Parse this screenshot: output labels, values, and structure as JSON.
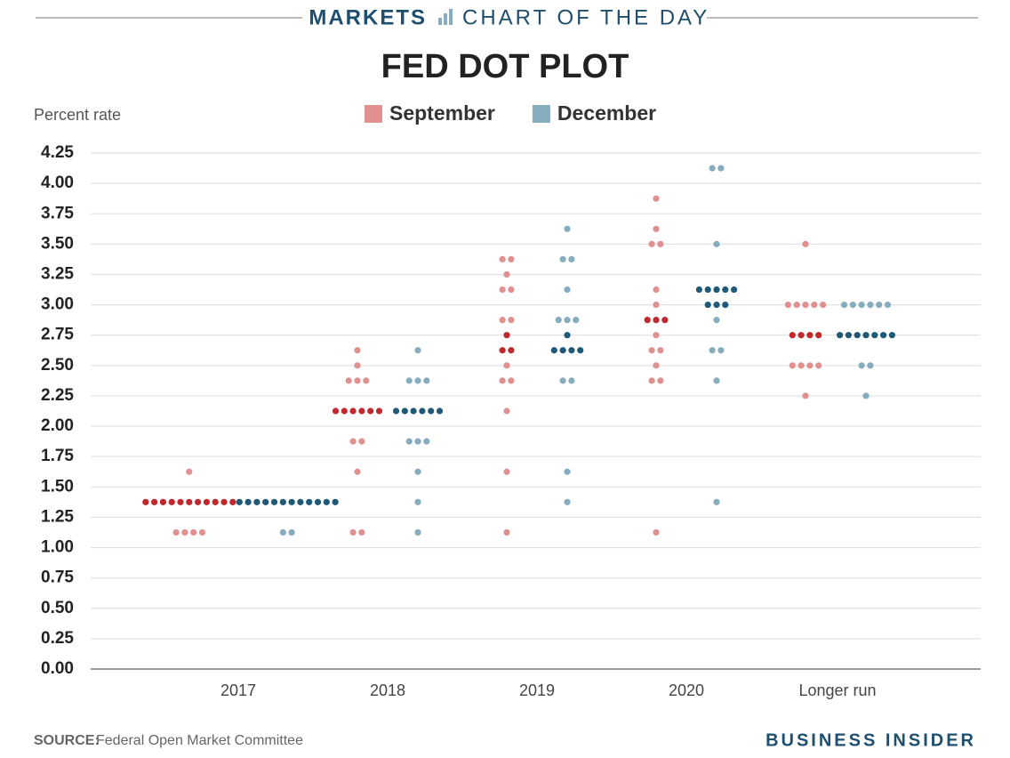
{
  "header": {
    "brand": "MARKETS",
    "section": "CHART OF THE DAY"
  },
  "chart_data": {
    "type": "dot",
    "title": "FED DOT PLOT",
    "y_label": "Percent rate",
    "categories": [
      "2017",
      "2018",
      "2019",
      "2020",
      "Longer run"
    ],
    "ylim": [
      0,
      4.25
    ],
    "yticks": [
      {
        "value": 0,
        "label": "0.00"
      },
      {
        "value": 0.25,
        "label": "0.25"
      },
      {
        "value": 0.5,
        "label": "0.50"
      },
      {
        "value": 0.75,
        "label": "0.75"
      },
      {
        "value": 1,
        "label": "1.00"
      },
      {
        "value": 1.25,
        "label": "1.25"
      },
      {
        "value": 1.5,
        "label": "1.50"
      },
      {
        "value": 1.75,
        "label": "1.75"
      },
      {
        "value": 2,
        "label": "2.00"
      },
      {
        "value": 2.25,
        "label": "2.25"
      },
      {
        "value": 2.5,
        "label": "2.50"
      },
      {
        "value": 2.75,
        "label": "2.75"
      },
      {
        "value": 3,
        "label": "3.00"
      },
      {
        "value": 3.25,
        "label": "3.25"
      },
      {
        "value": 3.5,
        "label": "3.50"
      },
      {
        "value": 3.75,
        "label": "3.75"
      },
      {
        "value": 4,
        "label": "4.00"
      },
      {
        "value": 4.25,
        "label": "4.25"
      }
    ],
    "grid": true,
    "series": [
      {
        "name": "September",
        "color": "#e0908f",
        "median_color": "#c0282d",
        "values": [
          [
            1.125,
            1.125,
            1.125,
            1.125,
            1.375,
            1.375,
            1.375,
            1.375,
            1.375,
            1.375,
            1.375,
            1.375,
            1.375,
            1.375,
            1.375,
            1.625
          ],
          [
            1.125,
            1.125,
            1.625,
            1.875,
            1.875,
            2.125,
            2.125,
            2.125,
            2.125,
            2.125,
            2.125,
            2.375,
            2.375,
            2.375,
            2.5,
            2.625
          ],
          [
            1.125,
            1.625,
            2.125,
            2.375,
            2.375,
            2.5,
            2.625,
            2.625,
            2.75,
            2.875,
            2.875,
            3.125,
            3.125,
            3.25,
            3.375,
            3.375
          ],
          [
            1.125,
            2.375,
            2.375,
            2.5,
            2.625,
            2.625,
            2.75,
            2.875,
            2.875,
            2.875,
            3.0,
            3.125,
            3.5,
            3.5,
            3.625,
            3.875
          ],
          [
            2.25,
            2.5,
            2.5,
            2.5,
            2.5,
            2.75,
            2.75,
            2.75,
            2.75,
            3.0,
            3.0,
            3.0,
            3.0,
            3.0,
            3.5
          ]
        ]
      },
      {
        "name": "December",
        "color": "#86adbd",
        "median_color": "#1e5a78",
        "values": [
          [
            1.125,
            1.125,
            1.375,
            1.375,
            1.375,
            1.375,
            1.375,
            1.375,
            1.375,
            1.375,
            1.375,
            1.375,
            1.375,
            1.375
          ],
          [
            1.125,
            1.375,
            1.625,
            1.875,
            1.875,
            1.875,
            2.125,
            2.125,
            2.125,
            2.125,
            2.125,
            2.125,
            2.375,
            2.375,
            2.375,
            2.625
          ],
          [
            1.375,
            1.625,
            2.375,
            2.375,
            2.625,
            2.625,
            2.625,
            2.625,
            2.75,
            2.875,
            2.875,
            2.875,
            3.125,
            3.375,
            3.375,
            3.625
          ],
          [
            1.375,
            2.375,
            2.625,
            2.625,
            2.875,
            3.0,
            3.0,
            3.0,
            3.125,
            3.125,
            3.125,
            3.125,
            3.125,
            3.5,
            4.125,
            4.125
          ],
          [
            2.25,
            2.5,
            2.5,
            2.75,
            2.75,
            2.75,
            2.75,
            2.75,
            2.75,
            2.75,
            3.0,
            3.0,
            3.0,
            3.0,
            3.0,
            3.0
          ]
        ]
      }
    ],
    "source_label": "SOURCE:",
    "source": "Federal Open Market Committee",
    "publisher": "BUSINESS INSIDER"
  }
}
